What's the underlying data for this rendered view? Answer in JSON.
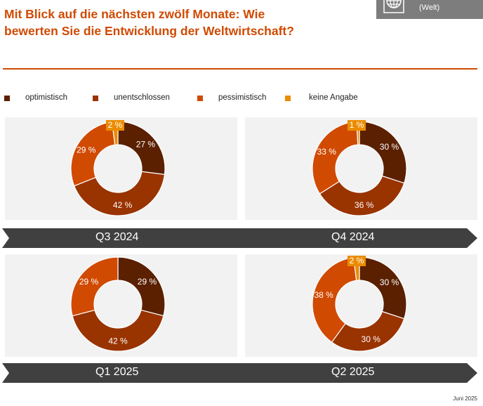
{
  "title": "Mit Blick auf die nächsten zwölf Monate: Wie bewerten Sie die Entwicklung der Weltwirtschaft?",
  "badge": {
    "icon": "globe-icon",
    "subtitle": "(Welt)"
  },
  "footer": "Juni 2025",
  "chart_data": {
    "type": "pie",
    "subtype": "donut",
    "legend": [
      "optimistisch",
      "unentschlossen",
      "pessimistisch",
      "keine Angabe"
    ],
    "colors": [
      "#5a2000",
      "#993300",
      "#d04a02",
      "#eb8c00"
    ],
    "unit": "%",
    "charts": [
      {
        "period": "Q3 2024",
        "values": [
          27,
          42,
          29,
          2
        ]
      },
      {
        "period": "Q4 2024",
        "values": [
          30,
          36,
          33,
          1
        ]
      },
      {
        "period": "Q1 2025",
        "values": [
          29,
          42,
          29,
          0
        ]
      },
      {
        "period": "Q2 2025",
        "values": [
          30,
          30,
          38,
          2
        ]
      }
    ]
  }
}
